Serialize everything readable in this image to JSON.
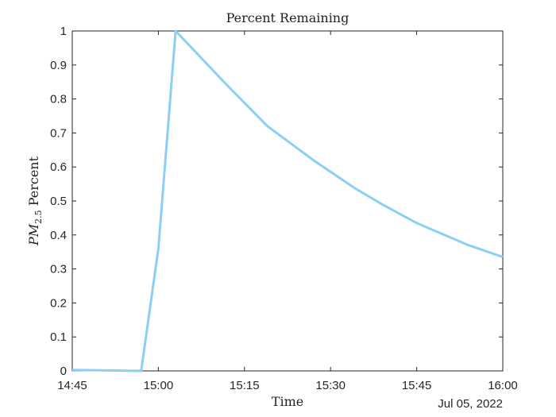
{
  "chart_data": {
    "type": "line",
    "title": "Percent Remaining",
    "xlabel": "Time",
    "ylabel": "PM_{2.5} Percent",
    "ylabel_main": "PM",
    "ylabel_sub": "2.5",
    "ylabel_rest": " Percent",
    "date_label": "Jul 05, 2022",
    "x_ticks": [
      "14:45",
      "15:00",
      "15:15",
      "15:30",
      "15:45",
      "16:00"
    ],
    "y_ticks": [
      "0",
      "0.1",
      "0.2",
      "0.3",
      "0.4",
      "0.5",
      "0.6",
      "0.7",
      "0.8",
      "0.9",
      "1"
    ],
    "xlim": [
      "14:45",
      "16:00"
    ],
    "ylim": [
      0,
      1
    ],
    "grid": false,
    "series": [
      {
        "color": "#8ccff5",
        "x": [
          "14:45",
          "14:57",
          "15:00",
          "15:03",
          "15:12",
          "15:19",
          "15:27",
          "15:34",
          "15:39",
          "15:45",
          "15:54",
          "16:00"
        ],
        "y": [
          0.003,
          0.0,
          0.36,
          1.0,
          0.84,
          0.72,
          0.62,
          0.54,
          0.49,
          0.435,
          0.37,
          0.335
        ]
      }
    ]
  }
}
